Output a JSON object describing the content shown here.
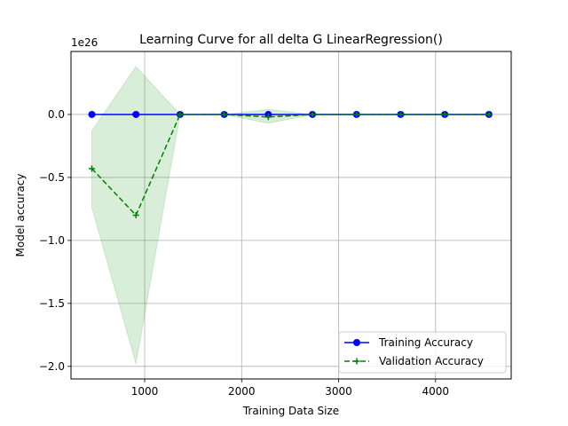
{
  "chart_data": {
    "type": "line",
    "title": "Learning Curve for all delta G LinearRegression()",
    "xlabel": "Training Data Size",
    "ylabel": "Model accuracy",
    "y_offset_label": "1e26",
    "xlim": [
      240,
      4780
    ],
    "ylim": [
      -2.1,
      0.5
    ],
    "x_ticks": [
      1000,
      2000,
      3000,
      4000
    ],
    "x_tick_labels": [
      "1000",
      "2000",
      "3000",
      "4000"
    ],
    "y_ticks": [
      0.0,
      -0.5,
      -1.0,
      -1.5,
      -2.0
    ],
    "y_tick_labels": [
      "0.0",
      "−0.5",
      "−1.0",
      "−1.5",
      "−2.0"
    ],
    "grid": true,
    "legend_position": "lower-right",
    "x": [
      455,
      910,
      1365,
      1820,
      2275,
      2730,
      3185,
      3640,
      4095,
      4550
    ],
    "series": [
      {
        "name": "Training Accuracy",
        "color": "#0000ff",
        "style": "solid",
        "marker": "circle",
        "values": [
          0,
          0,
          0,
          0,
          0,
          0,
          0,
          0,
          0,
          0
        ],
        "band_lower": [
          0,
          0,
          0,
          0,
          0,
          0,
          0,
          0,
          0,
          0
        ],
        "band_upper": [
          0,
          0,
          0,
          0,
          0,
          0,
          0,
          0,
          0,
          0
        ],
        "band_color": "#0000ff"
      },
      {
        "name": "Validation Accuracy",
        "color": "#008000",
        "style": "dashed",
        "marker": "plus",
        "values": [
          -0.43,
          -0.8,
          0.0,
          0.0,
          -0.02,
          0.0,
          0.0,
          0.0,
          0.0,
          0.0
        ],
        "band_lower": [
          -0.74,
          -1.98,
          0.0,
          0.0,
          -0.07,
          0.0,
          0.0,
          0.0,
          0.0,
          0.0
        ],
        "band_upper": [
          -0.13,
          0.38,
          0.0,
          0.0,
          0.04,
          0.0,
          0.0,
          0.0,
          0.0,
          0.0
        ],
        "band_color": "#2ca02c"
      }
    ]
  }
}
